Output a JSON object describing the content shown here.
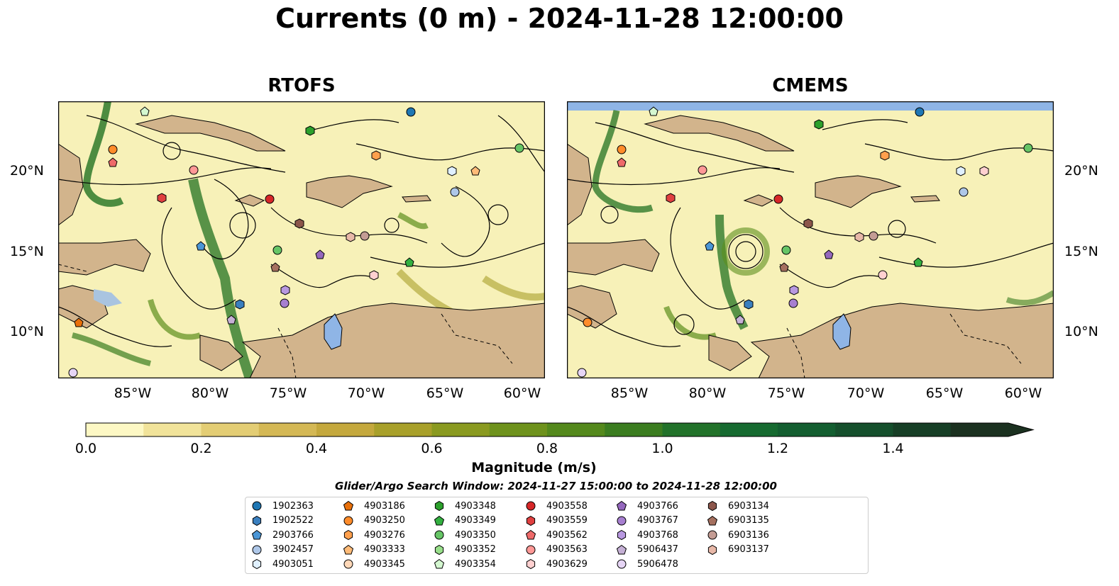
{
  "title": "Currents (0 m) - 2024-11-28 12:00:00",
  "panels": [
    {
      "title": "RTOFS"
    },
    {
      "title": "CMEMS"
    }
  ],
  "lat_ticks": [
    "20°N",
    "15°N",
    "10°N"
  ],
  "lon_ticks": [
    "85°W",
    "80°W",
    "75°W",
    "70°W",
    "65°W",
    "60°W"
  ],
  "colorbar": {
    "label": "Magnitude (m/s)",
    "ticks": [
      "0.0",
      "0.2",
      "0.4",
      "0.6",
      "0.8",
      "1.0",
      "1.2",
      "1.4"
    ],
    "colors": [
      "#fdf8c4",
      "#f1e39a",
      "#e3cd74",
      "#d4b855",
      "#c4a83d",
      "#a8a02a",
      "#8a9a20",
      "#6e921c",
      "#54891c",
      "#3b7d20",
      "#22722a",
      "#166a30",
      "#135e30",
      "#154f2c",
      "#173f26",
      "#1b3120"
    ]
  },
  "search_window": "Glider/Argo Search Window: 2024-11-27 15:00:00 to 2024-11-28 12:00:00",
  "legend": [
    {
      "id": "1902363",
      "color": "#1f77b4",
      "marker": "circle"
    },
    {
      "id": "1902522",
      "color": "#3a7fbf",
      "marker": "hexagon"
    },
    {
      "id": "2903766",
      "color": "#4b96d6",
      "marker": "pentagon"
    },
    {
      "id": "3902457",
      "color": "#aec7e8",
      "marker": "circle"
    },
    {
      "id": "4903051",
      "color": "#e0f0ff",
      "marker": "hexagon"
    },
    {
      "id": "4903186",
      "color": "#e8700a",
      "marker": "pentagon"
    },
    {
      "id": "4903250",
      "color": "#ff8c2a",
      "marker": "circle"
    },
    {
      "id": "4903276",
      "color": "#ffa04d",
      "marker": "hexagon"
    },
    {
      "id": "4903333",
      "color": "#ffbb78",
      "marker": "pentagon"
    },
    {
      "id": "4903345",
      "color": "#ffd8b8",
      "marker": "circle"
    },
    {
      "id": "4903348",
      "color": "#2ca02c",
      "marker": "hexagon"
    },
    {
      "id": "4903349",
      "color": "#33b040",
      "marker": "pentagon"
    },
    {
      "id": "4903350",
      "color": "#66c566",
      "marker": "circle"
    },
    {
      "id": "4903352",
      "color": "#98df8a",
      "marker": "hexagon"
    },
    {
      "id": "4903354",
      "color": "#d4f7d0",
      "marker": "pentagon"
    },
    {
      "id": "4903558",
      "color": "#d62728",
      "marker": "circle"
    },
    {
      "id": "4903559",
      "color": "#e04040",
      "marker": "hexagon"
    },
    {
      "id": "4903562",
      "color": "#ee6a6a",
      "marker": "pentagon"
    },
    {
      "id": "4903563",
      "color": "#ff9896",
      "marker": "circle"
    },
    {
      "id": "4903629",
      "color": "#ffd0d0",
      "marker": "hexagon"
    },
    {
      "id": "4903766",
      "color": "#9467bd",
      "marker": "pentagon"
    },
    {
      "id": "4903767",
      "color": "#a77fd0",
      "marker": "circle"
    },
    {
      "id": "4903768",
      "color": "#b898e0",
      "marker": "hexagon"
    },
    {
      "id": "5906437",
      "color": "#c5b0d5",
      "marker": "pentagon"
    },
    {
      "id": "5906478",
      "color": "#e6d5f5",
      "marker": "circle"
    },
    {
      "id": "6903134",
      "color": "#8c564b",
      "marker": "hexagon"
    },
    {
      "id": "6903135",
      "color": "#a5705f",
      "marker": "pentagon"
    },
    {
      "id": "6903136",
      "color": "#c49c94",
      "marker": "circle"
    },
    {
      "id": "6903137",
      "color": "#e8b8a8",
      "marker": "hexagon"
    }
  ],
  "colors": {
    "land": "#d2b48c",
    "water_fill": "#f7f1b8",
    "strong_current": "#2f7a2a",
    "lake": "#8fb5e6",
    "no_data": "#8fb5e6"
  }
}
